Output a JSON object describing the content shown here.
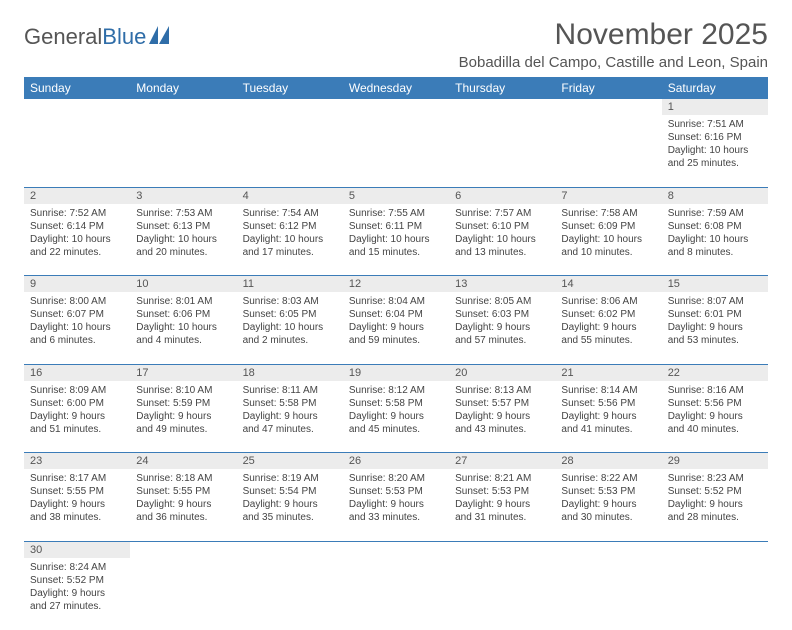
{
  "logo": {
    "general": "General",
    "blue": "Blue"
  },
  "title": "November 2025",
  "subtitle": "Bobadilla del Campo, Castille and Leon, Spain",
  "colors": {
    "header_bg": "#3b7cb8",
    "header_text": "#ffffff",
    "daynum_bg": "#ececec",
    "border": "#3b7cb8",
    "text": "#444444",
    "title": "#555555"
  },
  "weekdays": [
    "Sunday",
    "Monday",
    "Tuesday",
    "Wednesday",
    "Thursday",
    "Friday",
    "Saturday"
  ],
  "weeks": [
    {
      "nums": [
        "",
        "",
        "",
        "",
        "",
        "",
        "1"
      ],
      "cells": [
        null,
        null,
        null,
        null,
        null,
        null,
        {
          "sunrise": "Sunrise: 7:51 AM",
          "sunset": "Sunset: 6:16 PM",
          "daylight": "Daylight: 10 hours and 25 minutes."
        }
      ]
    },
    {
      "nums": [
        "2",
        "3",
        "4",
        "5",
        "6",
        "7",
        "8"
      ],
      "cells": [
        {
          "sunrise": "Sunrise: 7:52 AM",
          "sunset": "Sunset: 6:14 PM",
          "daylight": "Daylight: 10 hours and 22 minutes."
        },
        {
          "sunrise": "Sunrise: 7:53 AM",
          "sunset": "Sunset: 6:13 PM",
          "daylight": "Daylight: 10 hours and 20 minutes."
        },
        {
          "sunrise": "Sunrise: 7:54 AM",
          "sunset": "Sunset: 6:12 PM",
          "daylight": "Daylight: 10 hours and 17 minutes."
        },
        {
          "sunrise": "Sunrise: 7:55 AM",
          "sunset": "Sunset: 6:11 PM",
          "daylight": "Daylight: 10 hours and 15 minutes."
        },
        {
          "sunrise": "Sunrise: 7:57 AM",
          "sunset": "Sunset: 6:10 PM",
          "daylight": "Daylight: 10 hours and 13 minutes."
        },
        {
          "sunrise": "Sunrise: 7:58 AM",
          "sunset": "Sunset: 6:09 PM",
          "daylight": "Daylight: 10 hours and 10 minutes."
        },
        {
          "sunrise": "Sunrise: 7:59 AM",
          "sunset": "Sunset: 6:08 PM",
          "daylight": "Daylight: 10 hours and 8 minutes."
        }
      ]
    },
    {
      "nums": [
        "9",
        "10",
        "11",
        "12",
        "13",
        "14",
        "15"
      ],
      "cells": [
        {
          "sunrise": "Sunrise: 8:00 AM",
          "sunset": "Sunset: 6:07 PM",
          "daylight": "Daylight: 10 hours and 6 minutes."
        },
        {
          "sunrise": "Sunrise: 8:01 AM",
          "sunset": "Sunset: 6:06 PM",
          "daylight": "Daylight: 10 hours and 4 minutes."
        },
        {
          "sunrise": "Sunrise: 8:03 AM",
          "sunset": "Sunset: 6:05 PM",
          "daylight": "Daylight: 10 hours and 2 minutes."
        },
        {
          "sunrise": "Sunrise: 8:04 AM",
          "sunset": "Sunset: 6:04 PM",
          "daylight": "Daylight: 9 hours and 59 minutes."
        },
        {
          "sunrise": "Sunrise: 8:05 AM",
          "sunset": "Sunset: 6:03 PM",
          "daylight": "Daylight: 9 hours and 57 minutes."
        },
        {
          "sunrise": "Sunrise: 8:06 AM",
          "sunset": "Sunset: 6:02 PM",
          "daylight": "Daylight: 9 hours and 55 minutes."
        },
        {
          "sunrise": "Sunrise: 8:07 AM",
          "sunset": "Sunset: 6:01 PM",
          "daylight": "Daylight: 9 hours and 53 minutes."
        }
      ]
    },
    {
      "nums": [
        "16",
        "17",
        "18",
        "19",
        "20",
        "21",
        "22"
      ],
      "cells": [
        {
          "sunrise": "Sunrise: 8:09 AM",
          "sunset": "Sunset: 6:00 PM",
          "daylight": "Daylight: 9 hours and 51 minutes."
        },
        {
          "sunrise": "Sunrise: 8:10 AM",
          "sunset": "Sunset: 5:59 PM",
          "daylight": "Daylight: 9 hours and 49 minutes."
        },
        {
          "sunrise": "Sunrise: 8:11 AM",
          "sunset": "Sunset: 5:58 PM",
          "daylight": "Daylight: 9 hours and 47 minutes."
        },
        {
          "sunrise": "Sunrise: 8:12 AM",
          "sunset": "Sunset: 5:58 PM",
          "daylight": "Daylight: 9 hours and 45 minutes."
        },
        {
          "sunrise": "Sunrise: 8:13 AM",
          "sunset": "Sunset: 5:57 PM",
          "daylight": "Daylight: 9 hours and 43 minutes."
        },
        {
          "sunrise": "Sunrise: 8:14 AM",
          "sunset": "Sunset: 5:56 PM",
          "daylight": "Daylight: 9 hours and 41 minutes."
        },
        {
          "sunrise": "Sunrise: 8:16 AM",
          "sunset": "Sunset: 5:56 PM",
          "daylight": "Daylight: 9 hours and 40 minutes."
        }
      ]
    },
    {
      "nums": [
        "23",
        "24",
        "25",
        "26",
        "27",
        "28",
        "29"
      ],
      "cells": [
        {
          "sunrise": "Sunrise: 8:17 AM",
          "sunset": "Sunset: 5:55 PM",
          "daylight": "Daylight: 9 hours and 38 minutes."
        },
        {
          "sunrise": "Sunrise: 8:18 AM",
          "sunset": "Sunset: 5:55 PM",
          "daylight": "Daylight: 9 hours and 36 minutes."
        },
        {
          "sunrise": "Sunrise: 8:19 AM",
          "sunset": "Sunset: 5:54 PM",
          "daylight": "Daylight: 9 hours and 35 minutes."
        },
        {
          "sunrise": "Sunrise: 8:20 AM",
          "sunset": "Sunset: 5:53 PM",
          "daylight": "Daylight: 9 hours and 33 minutes."
        },
        {
          "sunrise": "Sunrise: 8:21 AM",
          "sunset": "Sunset: 5:53 PM",
          "daylight": "Daylight: 9 hours and 31 minutes."
        },
        {
          "sunrise": "Sunrise: 8:22 AM",
          "sunset": "Sunset: 5:53 PM",
          "daylight": "Daylight: 9 hours and 30 minutes."
        },
        {
          "sunrise": "Sunrise: 8:23 AM",
          "sunset": "Sunset: 5:52 PM",
          "daylight": "Daylight: 9 hours and 28 minutes."
        }
      ]
    },
    {
      "nums": [
        "30",
        "",
        "",
        "",
        "",
        "",
        ""
      ],
      "cells": [
        {
          "sunrise": "Sunrise: 8:24 AM",
          "sunset": "Sunset: 5:52 PM",
          "daylight": "Daylight: 9 hours and 27 minutes."
        },
        null,
        null,
        null,
        null,
        null,
        null
      ]
    }
  ]
}
